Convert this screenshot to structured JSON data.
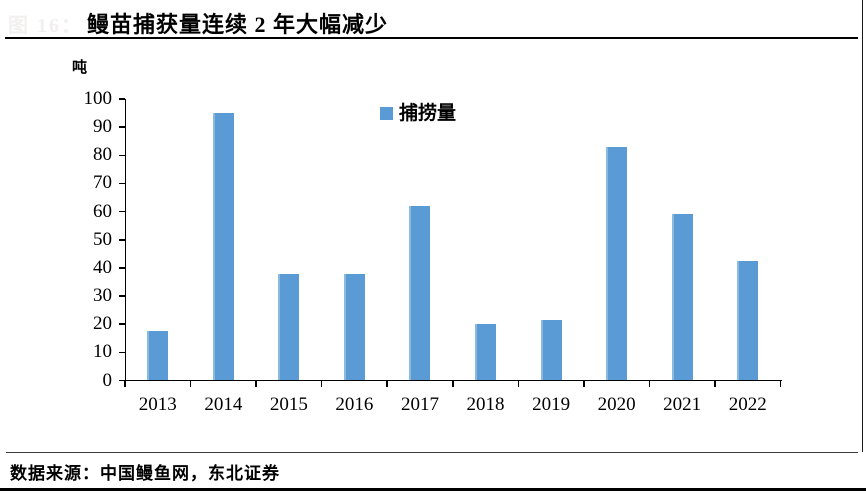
{
  "header": {
    "figure_label": "图 16：",
    "title": "鳗苗捕获量连续 2 年大幅减少"
  },
  "chart_data": {
    "type": "bar",
    "title": "鳗苗捕获量连续 2 年大幅减少",
    "unit_label": "吨",
    "categories": [
      "2013",
      "2014",
      "2015",
      "2016",
      "2017",
      "2018",
      "2019",
      "2020",
      "2021",
      "2022"
    ],
    "series": [
      {
        "name": "捕捞量",
        "values": [
          17.5,
          95,
          38,
          38,
          62,
          20,
          21.5,
          83,
          59,
          42.5
        ]
      }
    ],
    "ylim": [
      0,
      100
    ],
    "ytick_step": 10,
    "yticks": [
      0,
      10,
      20,
      30,
      40,
      50,
      60,
      70,
      80,
      90,
      100
    ],
    "grid": false,
    "legend": [
      {
        "label": "捕捞量",
        "color": "#5B9BD5"
      }
    ],
    "legend_position": "top-center",
    "bar_color": "#5B9BD5",
    "bar_edge_highlight": "#8BBADE",
    "xlabel": "",
    "ylabel": "吨"
  },
  "footer": {
    "source_text": "数据来源：中国鳗鱼网，东北证券"
  }
}
